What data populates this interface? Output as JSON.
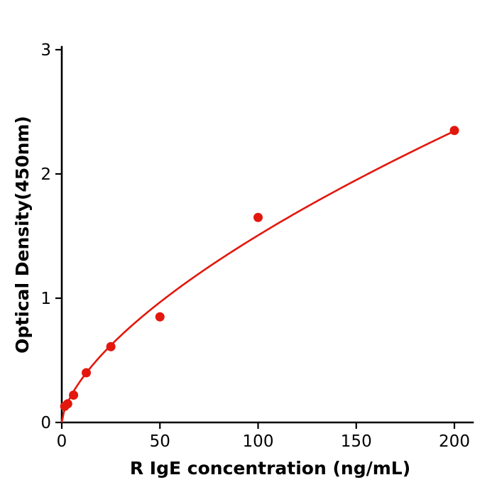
{
  "figure": {
    "background": "#ffffff"
  },
  "chart_data": {
    "type": "scatter",
    "title": "",
    "xlabel": "R  IgE concentration (ng/mL)",
    "ylabel": "Optical Density(450nm)",
    "x": [
      1.5,
      3,
      6,
      12.5,
      25,
      50,
      100,
      200
    ],
    "y": [
      0.13,
      0.15,
      0.22,
      0.4,
      0.61,
      0.85,
      1.65,
      2.35
    ],
    "x_ticks": [
      0,
      50,
      100,
      150,
      200
    ],
    "y_ticks": [
      0,
      1,
      2,
      3
    ],
    "xlim": [
      0,
      210
    ],
    "ylim": [
      0,
      3
    ],
    "grid": false,
    "legend": "none",
    "point_color": "#e3170d",
    "line_color": "#e3170d",
    "axis_color": "#000000",
    "trend": {
      "type": "power",
      "a": 0.0794,
      "b": 0.639
    }
  }
}
